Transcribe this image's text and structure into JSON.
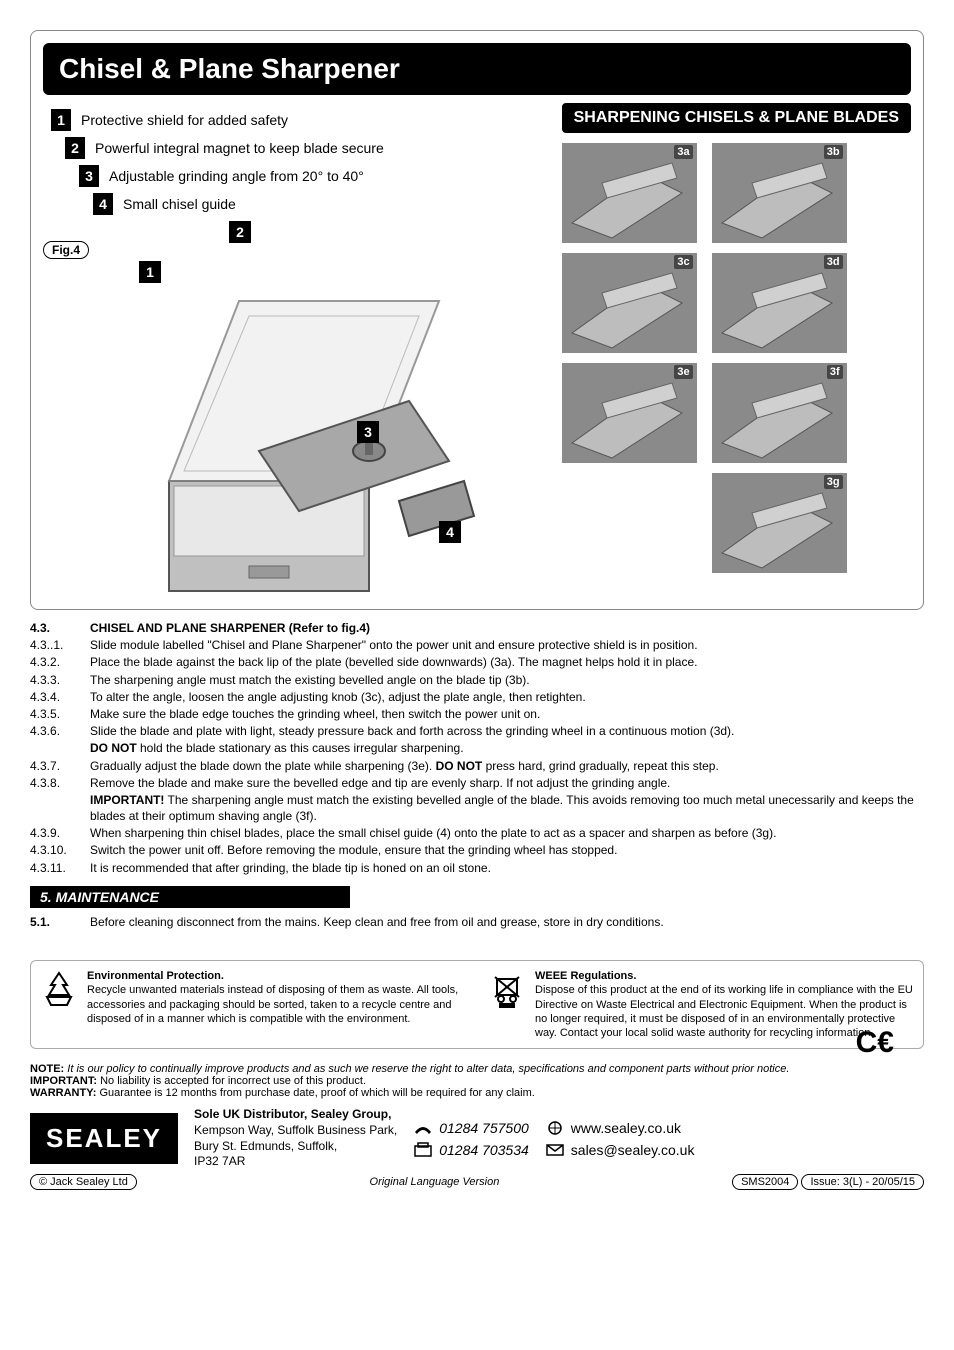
{
  "header": {
    "title": "Chisel & Plane Sharpener",
    "subtitle": "SHARPENING CHISELS & PLANE BLADES"
  },
  "features": [
    {
      "n": "1",
      "text": "Protective shield for added safety"
    },
    {
      "n": "2",
      "text": "Powerful integral magnet to keep blade secure"
    },
    {
      "n": "3",
      "text": "Adjustable grinding angle from 20° to 40°"
    },
    {
      "n": "4",
      "text": "Small chisel guide"
    }
  ],
  "fig_label": "Fig.4",
  "callouts": {
    "c1": "1",
    "c2": "2",
    "c3": "3",
    "c4": "4"
  },
  "steps": [
    "3a",
    "3b",
    "3c",
    "3d",
    "3e",
    "3f",
    "3g"
  ],
  "section43": {
    "title": "CHISEL AND PLANE SHARPENER (Refer to fig.4)",
    "num": "4.3.",
    "rows": [
      {
        "n": "4.3..1.",
        "t": "Slide module labelled \"Chisel and Plane Sharpener\" onto the power unit and ensure protective shield is in position."
      },
      {
        "n": "4.3.2.",
        "t": "Place the blade against the back lip of the plate (bevelled side downwards) (3a). The magnet helps hold it in place."
      },
      {
        "n": "4.3.3.",
        "t": "The sharpening angle must match the existing bevelled angle on the blade tip (3b)."
      },
      {
        "n": "4.3.4.",
        "t": "To alter the angle, loosen the angle adjusting knob (3c), adjust the plate angle, then retighten."
      },
      {
        "n": "4.3.5.",
        "t": "Make sure the blade edge touches the grinding wheel, then switch the power unit on."
      },
      {
        "n": "4.3.6.",
        "t": "Slide the blade and plate with light, steady pressure back and forth across the grinding wheel in a continuous motion (3d)."
      },
      {
        "n": "",
        "t": "<b>DO NOT</b> hold the blade stationary as this causes irregular sharpening."
      },
      {
        "n": "4.3.7.",
        "t": "Gradually adjust the blade down the plate while sharpening (3e). <b>DO NOT</b> press hard, grind gradually, repeat this step."
      },
      {
        "n": "4.3.8.",
        "t": "Remove the blade and make sure the bevelled edge and tip are evenly sharp. If not adjust the grinding angle."
      },
      {
        "n": "",
        "t": "<b>IMPORTANT!</b> The sharpening angle must match the existing bevelled angle of the blade. This avoids removing too much metal unecessarily and keeps the blades at their optimum shaving angle (3f)."
      },
      {
        "n": "4.3.9.",
        "t": "When sharpening thin chisel blades, place the small chisel guide (4) onto the plate to act as a spacer and sharpen as before (3g)."
      },
      {
        "n": "4.3.10.",
        "t": "Switch the power unit off. Before removing the module, ensure that the grinding wheel has stopped."
      },
      {
        "n": "4.3.11.",
        "t": "It is recommended that after grinding, the blade tip is honed on an oil stone."
      }
    ]
  },
  "section5": {
    "heading": "5.    MAINTENANCE",
    "row": {
      "n": "5.1.",
      "t": "Before cleaning disconnect from the mains. Keep clean and free from oil and grease, store in dry conditions."
    }
  },
  "env": {
    "title": "Environmental Protection.",
    "body": "Recycle unwanted materials instead of disposing of them as waste. All tools, accessories and packaging should be sorted, taken to a recycle centre and disposed of in a manner which is compatible with the environment."
  },
  "weee": {
    "title": "WEEE Regulations.",
    "body": "Dispose of this product at the end of its working life in compliance with the EU Directive on Waste Electrical and Electronic Equipment. When the product is no longer required, it must be disposed of in an environmentally protective way. Contact your local solid waste authority for recycling information."
  },
  "notes": {
    "note": "It is our policy to continually improve products and as such we reserve the right to alter data, specifications and component parts without prior notice.",
    "important": "No liability is accepted for incorrect use of this product.",
    "warranty": "Guarantee is 12 months from purchase date, proof of which will be required for any claim."
  },
  "footer": {
    "logo": "SEALEY",
    "addr_title": "Sole UK Distributor, Sealey Group,",
    "addr_lines": [
      "Kempson Way, Suffolk Business Park,",
      "Bury St. Edmunds, Suffolk,",
      "IP32 7AR"
    ],
    "phone": "01284 757500",
    "fax": "01284 703534",
    "web": "www.sealey.co.uk",
    "email": "sales@sealey.co.uk",
    "copyright": "©  Jack Sealey Ltd",
    "orig": "Original Language Version",
    "model": "SMS2004",
    "issue": "Issue: 3(L) - 20/05/15",
    "ce": "CE"
  },
  "colors": {
    "black": "#000000",
    "grey": "#888888",
    "border": "#aaaaaa",
    "white": "#ffffff"
  }
}
